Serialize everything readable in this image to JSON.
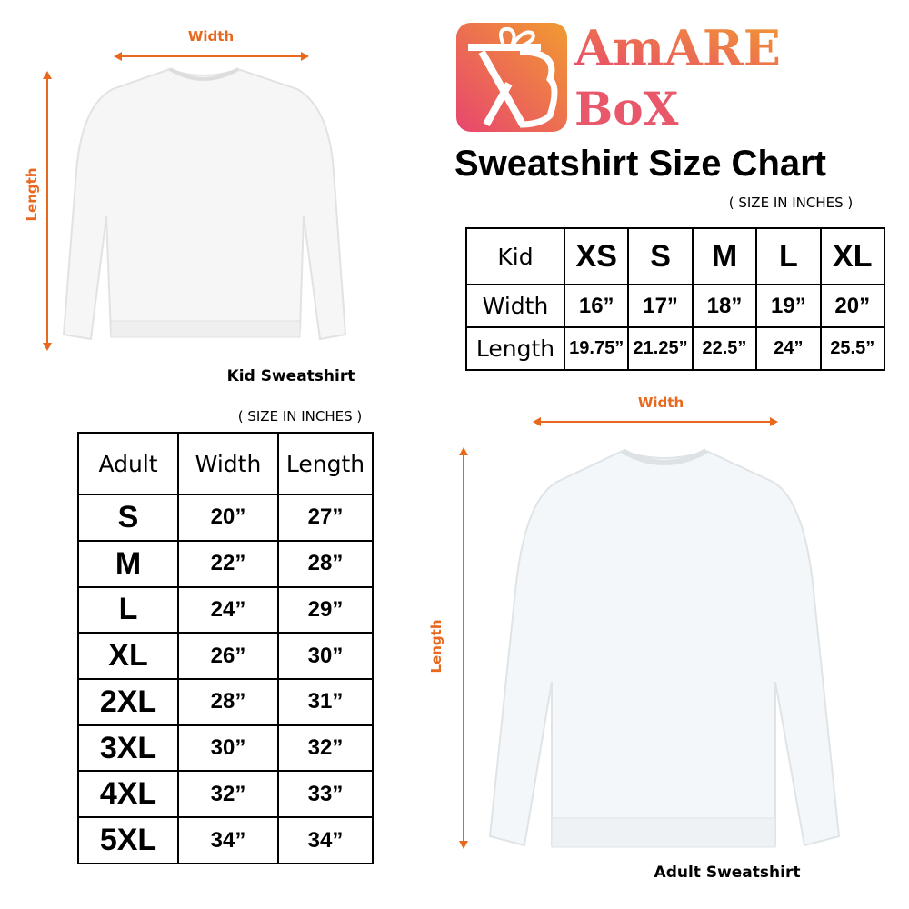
{
  "brand": {
    "name": "Amare Box",
    "line1": "AmARE",
    "line2": "BoX",
    "colors": {
      "pink": "#e8466e",
      "orange": "#f19a32"
    }
  },
  "title": "Sweatshirt Size Chart",
  "accent_color": "#e8681e",
  "kid": {
    "width_label": "Width",
    "length_label": "Length",
    "caption": "Kid Sweatshirt",
    "note": "( SIZE IN INCHES )",
    "table": {
      "corner": "Kid",
      "sizes": [
        "XS",
        "S",
        "M",
        "L",
        "XL"
      ],
      "rows": [
        {
          "label": "Width",
          "values": [
            "16”",
            "17”",
            "18”",
            "19”",
            "20”"
          ]
        },
        {
          "label": "Length",
          "values": [
            "19.75”",
            "21.25”",
            "22.5”",
            "24”",
            "25.5”"
          ]
        }
      ]
    }
  },
  "adult": {
    "width_label": "Width",
    "length_label": "Length",
    "caption": "Adult Sweatshirt",
    "note": "( SIZE IN INCHES )",
    "table": {
      "headers": [
        "Adult",
        "Width",
        "Length"
      ],
      "rows": [
        {
          "size": "S",
          "width": "20”",
          "length": "27”"
        },
        {
          "size": "M",
          "width": "22”",
          "length": "28”"
        },
        {
          "size": "L",
          "width": "24”",
          "length": "29”"
        },
        {
          "size": "XL",
          "width": "26”",
          "length": "30”"
        },
        {
          "size": "2XL",
          "width": "28”",
          "length": "31”"
        },
        {
          "size": "3XL",
          "width": "30”",
          "length": "32”"
        },
        {
          "size": "4XL",
          "width": "32”",
          "length": "33”"
        },
        {
          "size": "5XL",
          "width": "34”",
          "length": "34”"
        }
      ]
    }
  }
}
